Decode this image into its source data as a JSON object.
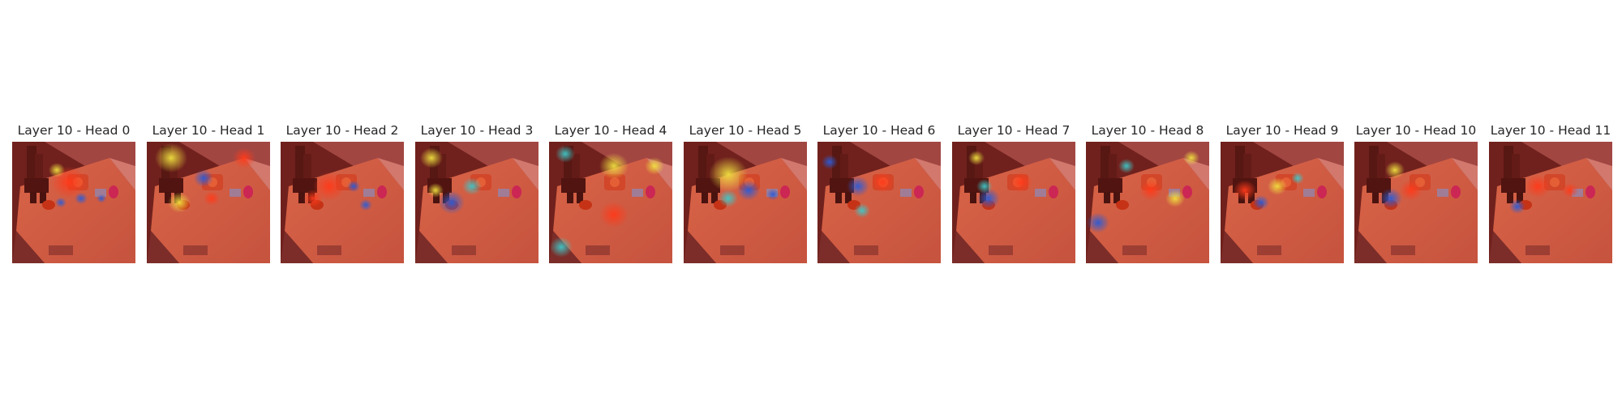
{
  "figure": {
    "panels": [
      {
        "title": "Layer 10 - Head 0"
      },
      {
        "title": "Layer 10 - Head 1"
      },
      {
        "title": "Layer 10 - Head 2"
      },
      {
        "title": "Layer 10 - Head 3"
      },
      {
        "title": "Layer 10 - Head 4"
      },
      {
        "title": "Layer 10 - Head 5"
      },
      {
        "title": "Layer 10 - Head 6"
      },
      {
        "title": "Layer 10 - Head 7"
      },
      {
        "title": "Layer 10 - Head 8"
      },
      {
        "title": "Layer 10 - Head 9"
      },
      {
        "title": "Layer 10 - Head 10"
      },
      {
        "title": "Layer 10 - Head 11"
      }
    ],
    "colors": {
      "overlay_base": "#c0392b",
      "background_dark": "#5a1a1a",
      "table": "#e07050",
      "hot": "#ff3a1a",
      "cool": "#2a5cd8",
      "cyan": "#3ec8c8",
      "yellow": "#f0e040"
    }
  }
}
